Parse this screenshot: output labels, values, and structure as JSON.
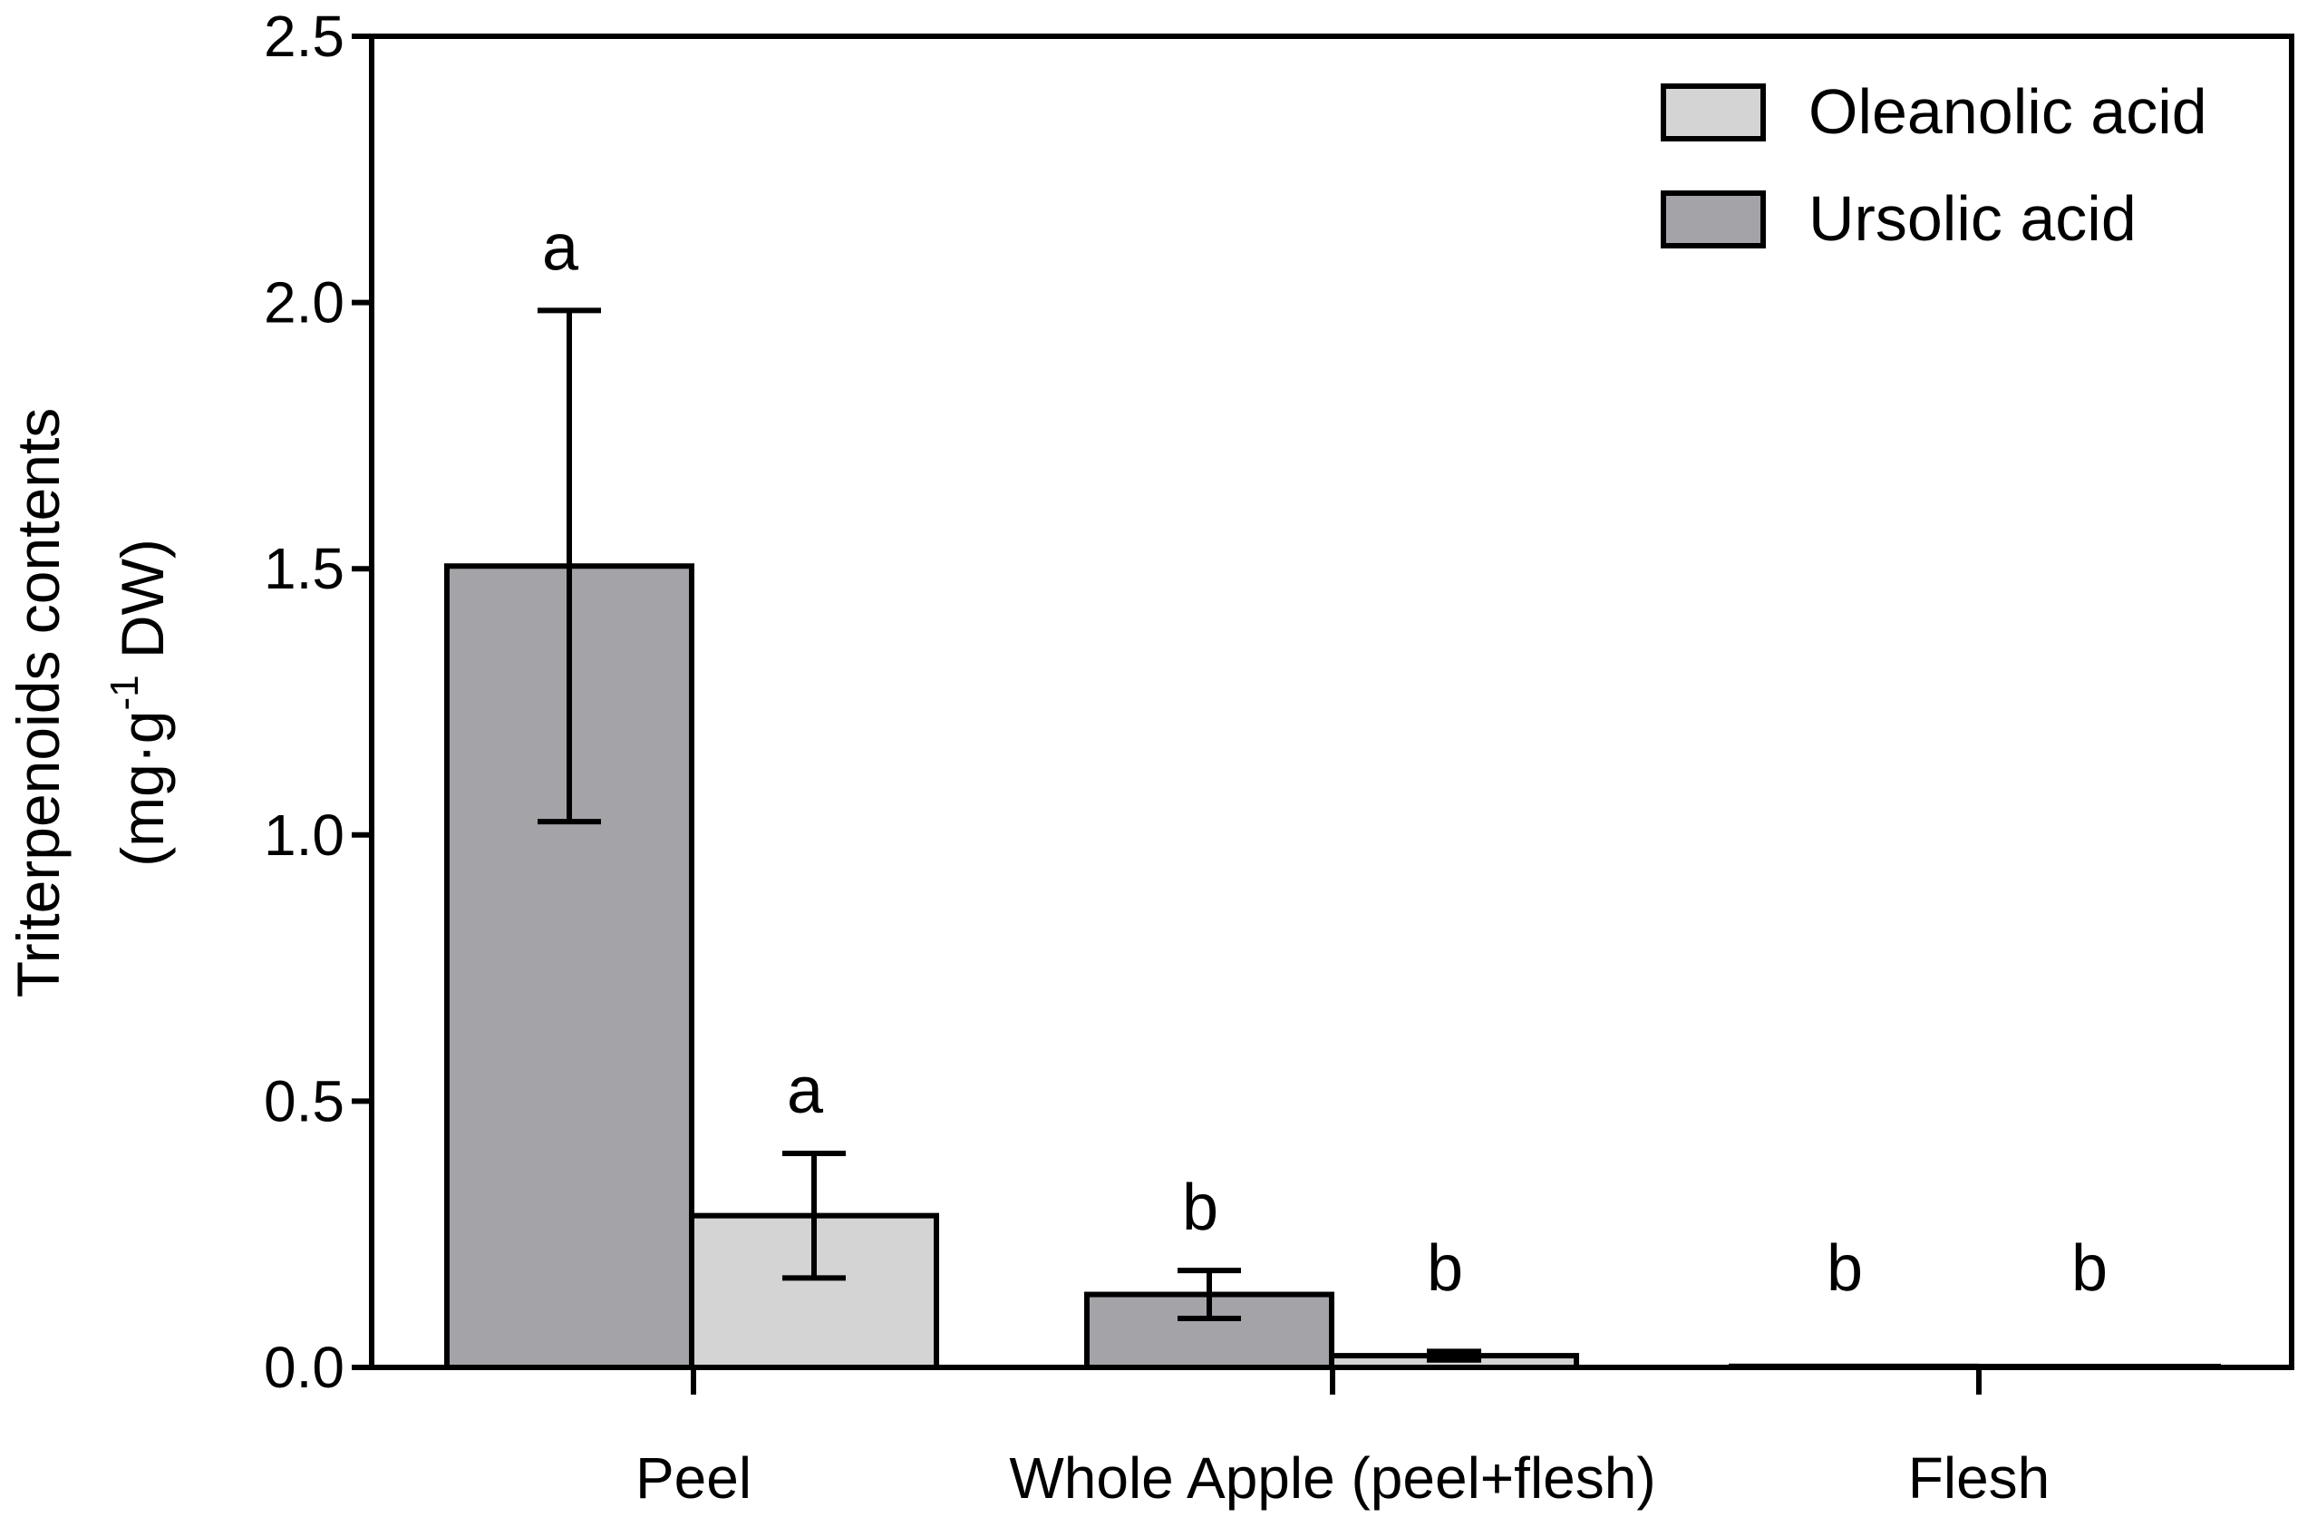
{
  "chart_data": {
    "type": "bar",
    "ylabel_line1": "Triterpenoids contents",
    "ylabel_line2_prefix": "(mg·g",
    "ylabel_line2_sup": "-1",
    "ylabel_line2_suffix": " DW)",
    "ylim": [
      0,
      2.5
    ],
    "yticks": [
      "0.0",
      "0.5",
      "1.0",
      "1.5",
      "2.0",
      "2.5"
    ],
    "categories": [
      "Peel",
      "Whole Apple (peel+flesh)",
      "Flesh"
    ],
    "series": [
      {
        "name": "Ursolic acid",
        "color": "#a4a3a8",
        "values": [
          1.505,
          0.137,
          0.002
        ],
        "errors": [
          0.48,
          0.045,
          0
        ],
        "letters": [
          "a",
          "b",
          "b"
        ]
      },
      {
        "name": "Oleanolic acid",
        "color": "#d4d4d4",
        "values": [
          0.285,
          0.022,
          0.0
        ],
        "errors": [
          0.117,
          0.008,
          0
        ],
        "letters": [
          "a",
          "b",
          "b"
        ]
      }
    ],
    "legend": [
      "Oleanolic acid",
      "Ursolic acid"
    ],
    "legend_position": "top-right",
    "grid": false
  }
}
